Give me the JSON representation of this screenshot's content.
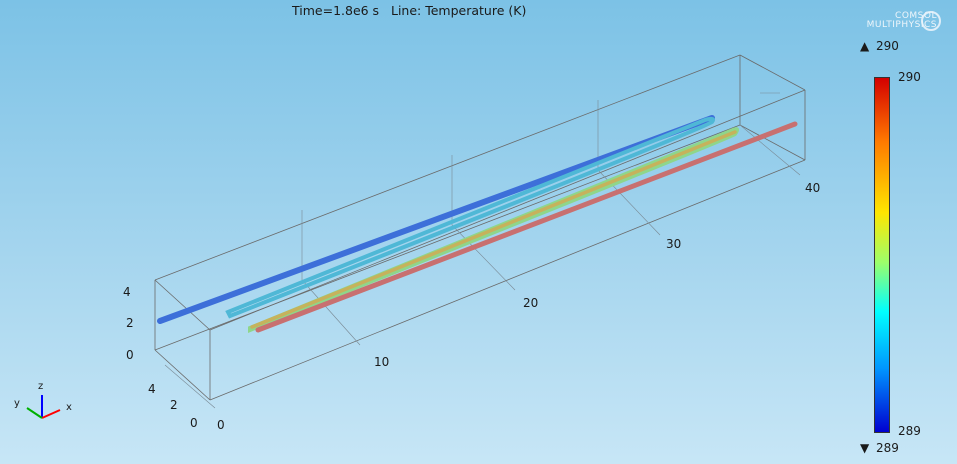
{
  "title": "Time=1.8e6 s   Line: Temperature (K)",
  "logo": {
    "line1": "COMSOL",
    "line2": "MULTIPHYSICS"
  },
  "colorbar": {
    "max_label": "290",
    "min_label": "289",
    "top_value": "290",
    "bottom_value": "289"
  },
  "axes": {
    "x_ticks": [
      "10",
      "20",
      "30",
      "40"
    ],
    "y_ticks": [
      "0",
      "2",
      "4"
    ],
    "z_ticks": [
      "0",
      "2",
      "4"
    ],
    "y_front_ticks": [
      "0"
    ],
    "triad": {
      "x": "x",
      "y": "y",
      "z": "z"
    }
  },
  "colors": {
    "cold": "#3a6fd8",
    "mid": "#5fd6c6",
    "warm": "#c9b35a",
    "hot": "#c86060"
  }
}
